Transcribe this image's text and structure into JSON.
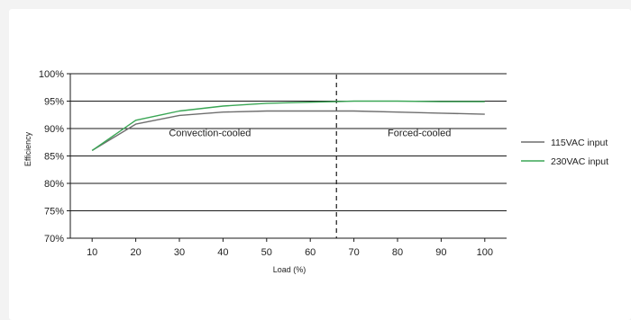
{
  "chart_data": {
    "type": "line",
    "xlabel": "Load (%)",
    "ylabel": "Efficiency",
    "x_ticks": [
      10,
      20,
      30,
      40,
      50,
      60,
      70,
      80,
      90,
      100
    ],
    "xlim": [
      5,
      105
    ],
    "y_ticks": [
      "70%",
      "75%",
      "80%",
      "85%",
      "90%",
      "95%",
      "100%"
    ],
    "y_tick_values": [
      70,
      75,
      80,
      85,
      90,
      95,
      100
    ],
    "ylim": [
      70,
      100
    ],
    "grid": "horizontal",
    "legend_position": "right",
    "divider_x": 66,
    "annotations": [
      {
        "text": "Convection-cooled",
        "x": 37,
        "y": 88.6
      },
      {
        "text": "Forced-cooled",
        "x": 85,
        "y": 88.6
      }
    ],
    "series": [
      {
        "name": "115VAC input",
        "color": "#6e6e6e",
        "x": [
          10,
          20,
          30,
          40,
          50,
          60,
          70,
          80,
          90,
          100
        ],
        "values": [
          86.0,
          90.8,
          92.4,
          93.0,
          93.2,
          93.2,
          93.2,
          93.0,
          92.8,
          92.6
        ]
      },
      {
        "name": "230VAC input",
        "color": "#3aa655",
        "x": [
          10,
          20,
          30,
          40,
          50,
          60,
          70,
          80,
          90,
          100
        ],
        "values": [
          86.0,
          91.5,
          93.2,
          94.1,
          94.6,
          94.8,
          95.0,
          95.0,
          94.9,
          94.9
        ]
      }
    ]
  }
}
